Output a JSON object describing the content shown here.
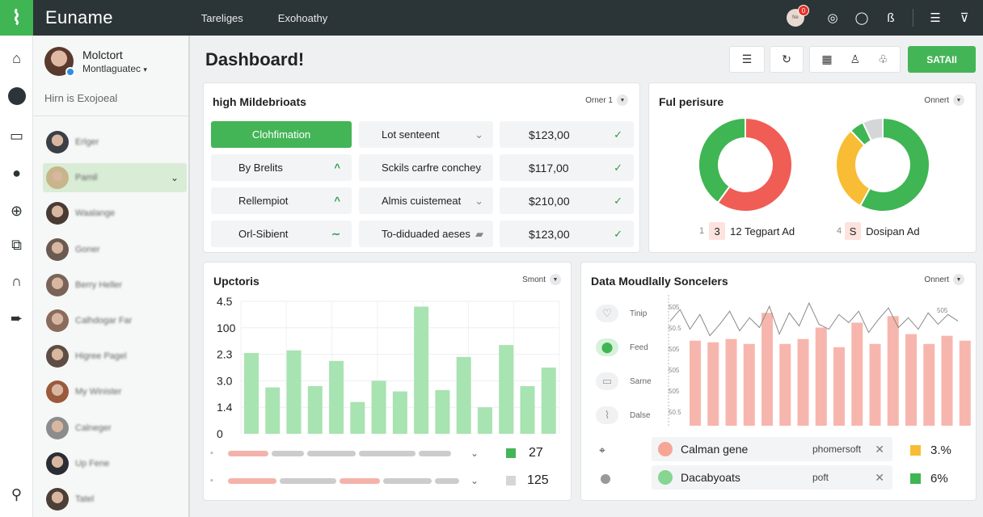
{
  "app": {
    "brand": "Euname",
    "nav": [
      "Tareliges",
      "Exohoathy"
    ],
    "badge": "0",
    "avatar_label": "Ne"
  },
  "profile": {
    "name": "Molctort",
    "subtitle": "Montlaguatec",
    "section": "Hirn is Exojoeal"
  },
  "contacts": [
    {
      "name": "Erlger",
      "color": "#3b3f46",
      "active": false
    },
    {
      "name": "Pamil",
      "color": "#c9b58b",
      "active": true
    },
    {
      "name": "Waalange",
      "color": "#4a3a34",
      "active": false
    },
    {
      "name": "Goner",
      "color": "#6b5a50",
      "active": false
    },
    {
      "name": "Berry Heller",
      "color": "#7a6358",
      "active": false
    },
    {
      "name": "Calhdogar Far",
      "color": "#8a6b5c",
      "active": false
    },
    {
      "name": "Higree Pagel",
      "color": "#5d4d44",
      "active": false
    },
    {
      "name": "My Winister",
      "color": "#9a5a3c",
      "active": false
    },
    {
      "name": "Calneger",
      "color": "#8c8c8c",
      "active": false
    },
    {
      "name": "Up Fene",
      "color": "#2a2d33",
      "active": false
    },
    {
      "name": "Tatel",
      "color": "#4c3f36",
      "active": false
    }
  ],
  "page_title": "Dashboard!",
  "primary_button": "SATAII",
  "colors": {
    "accent": "#44b557",
    "topbar": "#2b3437",
    "bar_green": "#a8e3b2",
    "bar_red": "#f7b6ad",
    "donut_red": "#ef5d55",
    "donut_yellow": "#f8bd34",
    "donut_grey": "#d4d6d8"
  },
  "card_main": {
    "title": "high Mildebrioats",
    "menu": "Orner 1",
    "rows": [
      {
        "a": "Clohfimation",
        "b": "Lot senteent",
        "c": "$123,00"
      },
      {
        "a": "By Brelits",
        "b": "Sckils carfre conchey",
        "c": "$117,00"
      },
      {
        "a": "Rellempiot",
        "b": "Almis cuistemeat",
        "c": "$210,00"
      },
      {
        "a": "Orl-Sibient",
        "b": "To-diduaded aeses",
        "c": "$123,00"
      }
    ]
  },
  "card_pie": {
    "title": "Ful perisure",
    "menu": "Onnert",
    "legend": [
      {
        "chip": "3",
        "prefix": "1",
        "label": "12 Tegpart Ad"
      },
      {
        "chip": "S",
        "prefix": "4",
        "label": "Dosipan Ad"
      }
    ]
  },
  "chart_data": [
    {
      "type": "pie",
      "title": "",
      "charts": [
        {
          "slices": [
            {
              "value": 60,
              "color": "#ef5d55"
            },
            {
              "value": 40,
              "color": "#3fb553"
            }
          ]
        },
        {
          "slices": [
            {
              "value": 58,
              "color": "#3fb553"
            },
            {
              "value": 30,
              "color": "#f8bd34"
            },
            {
              "value": 5,
              "color": "#3fb553"
            },
            {
              "value": 7,
              "color": "#d4d6d8"
            }
          ]
        }
      ]
    },
    {
      "type": "bar",
      "title": "Upctoris",
      "tick_labels": [
        "4.5",
        "100",
        "2.3",
        "3.0",
        "1.4",
        "0"
      ],
      "values": [
        3.05,
        1.75,
        3.15,
        1.8,
        2.75,
        1.2,
        2.0,
        1.6,
        4.8,
        1.65,
        2.9,
        1.0,
        3.35,
        1.8,
        2.5
      ],
      "ylim": [
        0,
        5
      ]
    },
    {
      "type": "bar",
      "title": "Data Moudlally Soncelers",
      "y_labels": [
        "505",
        "50.5",
        "505",
        "505",
        "505",
        "50.5"
      ],
      "bar_values": [
        5.2,
        5.1,
        5.3,
        5.0,
        6.9,
        5.0,
        5.3,
        6.0,
        4.8,
        6.3,
        5.0,
        6.7,
        5.6,
        5.0,
        5.5,
        5.2
      ],
      "line_values": [
        6.4,
        7.1,
        5.9,
        6.8,
        5.5,
        6.2,
        7.0,
        5.8,
        6.6,
        6.0,
        7.3,
        5.6,
        6.9,
        6.1,
        7.5,
        6.2,
        5.9,
        6.8,
        6.3,
        7.0,
        5.7,
        6.5,
        7.2,
        6.0,
        6.6,
        5.9,
        6.9,
        6.2,
        6.8,
        6.4
      ],
      "ylim": [
        0,
        8
      ]
    }
  ],
  "card_bars": {
    "title": "Upctoris",
    "menu": "Smont",
    "rows": [
      {
        "value": "27"
      },
      {
        "value": "125"
      }
    ]
  },
  "card_data": {
    "title": "Data Moudlally Soncelers",
    "menu": "Onnert",
    "side_items": [
      "Tinip",
      "Feed",
      "Sarne",
      "Dalse"
    ],
    "pills": [
      {
        "label": "Calman gene",
        "sub": "phomersoft",
        "pct": "3.%",
        "dot": "#f7a595",
        "sq": "#f8bd34"
      },
      {
        "label": "Dacabyoats",
        "sub": "poft",
        "pct": "6%",
        "dot": "#86d593",
        "sq": "#3fb553"
      }
    ]
  }
}
